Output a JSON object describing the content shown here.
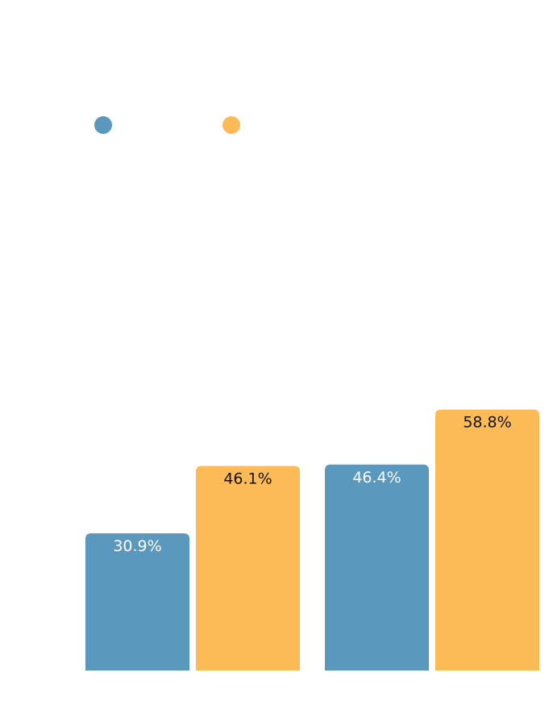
{
  "chart_data": {
    "type": "bar",
    "title": "",
    "xlabel": "",
    "ylabel": "",
    "categories": [
      "",
      ""
    ],
    "series": [
      {
        "values": [
          30.9,
          46.4
        ],
        "labels": [
          "30.9%",
          "46.4%"
        ],
        "color": "#5a98bd",
        "label_color": "#ffffff"
      },
      {
        "values": [
          46.1,
          58.8
        ],
        "labels": [
          "46.1%",
          "58.8%"
        ],
        "color": "#fdbb58",
        "label_color": "#111111"
      }
    ],
    "ylim": [
      0,
      60
    ],
    "grid": false,
    "legend": {
      "position": "top-left",
      "markers": [
        "circle",
        "circle"
      ]
    }
  }
}
